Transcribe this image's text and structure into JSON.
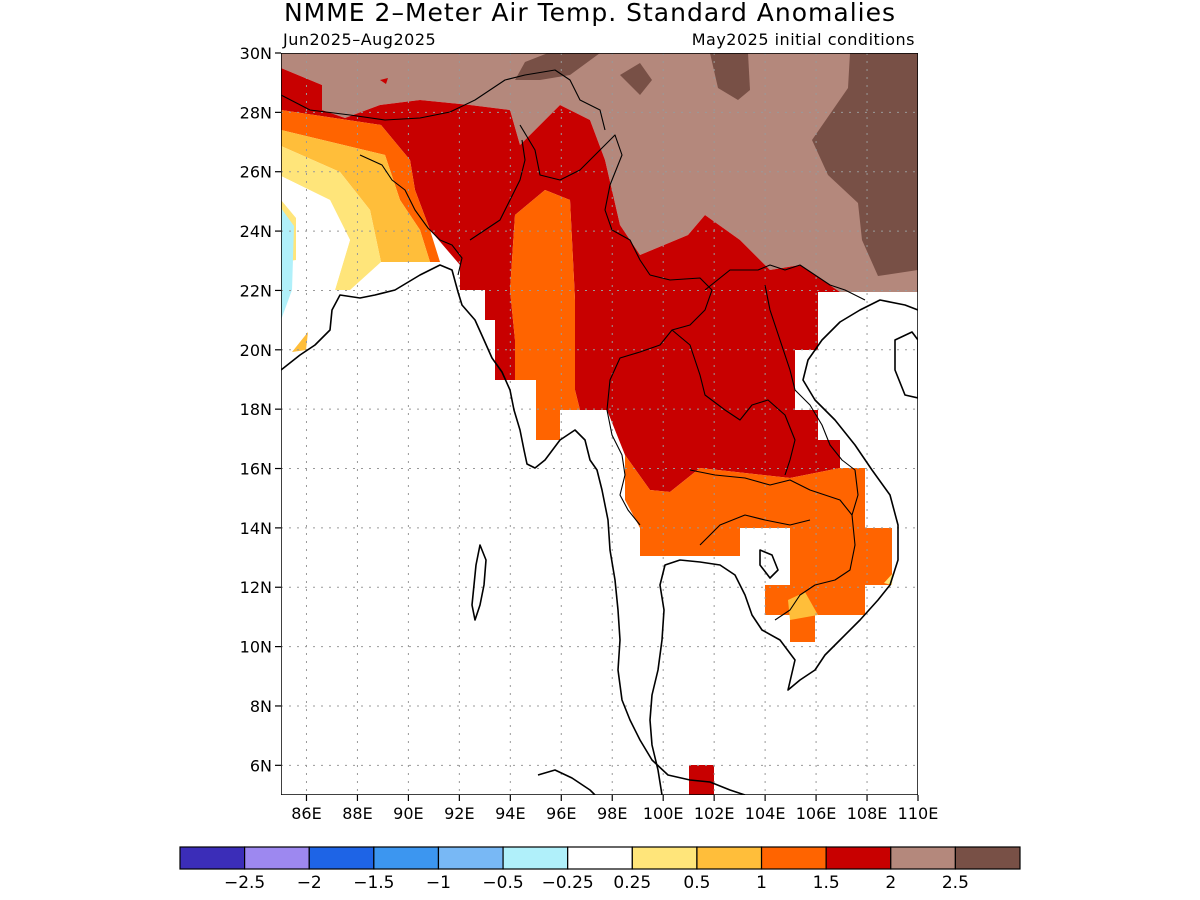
{
  "header": {
    "title": "NMME 2–Meter Air Temp. Standard Anomalies",
    "period": "Jun2025–Aug2025",
    "initial_conditions": "May2025 initial conditions"
  },
  "map": {
    "lon_range": [
      85,
      110
    ],
    "lat_range": [
      5,
      30
    ],
    "lat_ticks": [
      {
        "value": 6,
        "label": "6N"
      },
      {
        "value": 8,
        "label": "8N"
      },
      {
        "value": 10,
        "label": "10N"
      },
      {
        "value": 12,
        "label": "12N"
      },
      {
        "value": 14,
        "label": "14N"
      },
      {
        "value": 16,
        "label": "16N"
      },
      {
        "value": 18,
        "label": "18N"
      },
      {
        "value": 20,
        "label": "20N"
      },
      {
        "value": 22,
        "label": "22N"
      },
      {
        "value": 24,
        "label": "24N"
      },
      {
        "value": 26,
        "label": "26N"
      },
      {
        "value": 28,
        "label": "28N"
      },
      {
        "value": 30,
        "label": "30N"
      }
    ],
    "lon_ticks": [
      {
        "value": 86,
        "label": "86E"
      },
      {
        "value": 88,
        "label": "88E"
      },
      {
        "value": 90,
        "label": "90E"
      },
      {
        "value": 92,
        "label": "92E"
      },
      {
        "value": 94,
        "label": "94E"
      },
      {
        "value": 96,
        "label": "96E"
      },
      {
        "value": 98,
        "label": "98E"
      },
      {
        "value": 100,
        "label": "100E"
      },
      {
        "value": 102,
        "label": "102E"
      },
      {
        "value": 104,
        "label": "104E"
      },
      {
        "value": 106,
        "label": "106E"
      },
      {
        "value": 108,
        "label": "108E"
      },
      {
        "value": 110,
        "label": "110E"
      }
    ]
  },
  "colorbar": {
    "colors": [
      "#3b2db8",
      "#9d88f0",
      "#1e64e6",
      "#3c96f0",
      "#78b8f5",
      "#b0f0fa",
      "#ffffff",
      "#ffe57a",
      "#ffbe3a",
      "#ff6400",
      "#c80000",
      "#b4887c",
      "#785046"
    ],
    "labels": [
      "−2.5",
      "−2",
      "−1.5",
      "−1",
      "−0.5",
      "−0.25",
      "0.25",
      "0.5",
      "1",
      "1.5",
      "2",
      "2.5"
    ]
  }
}
